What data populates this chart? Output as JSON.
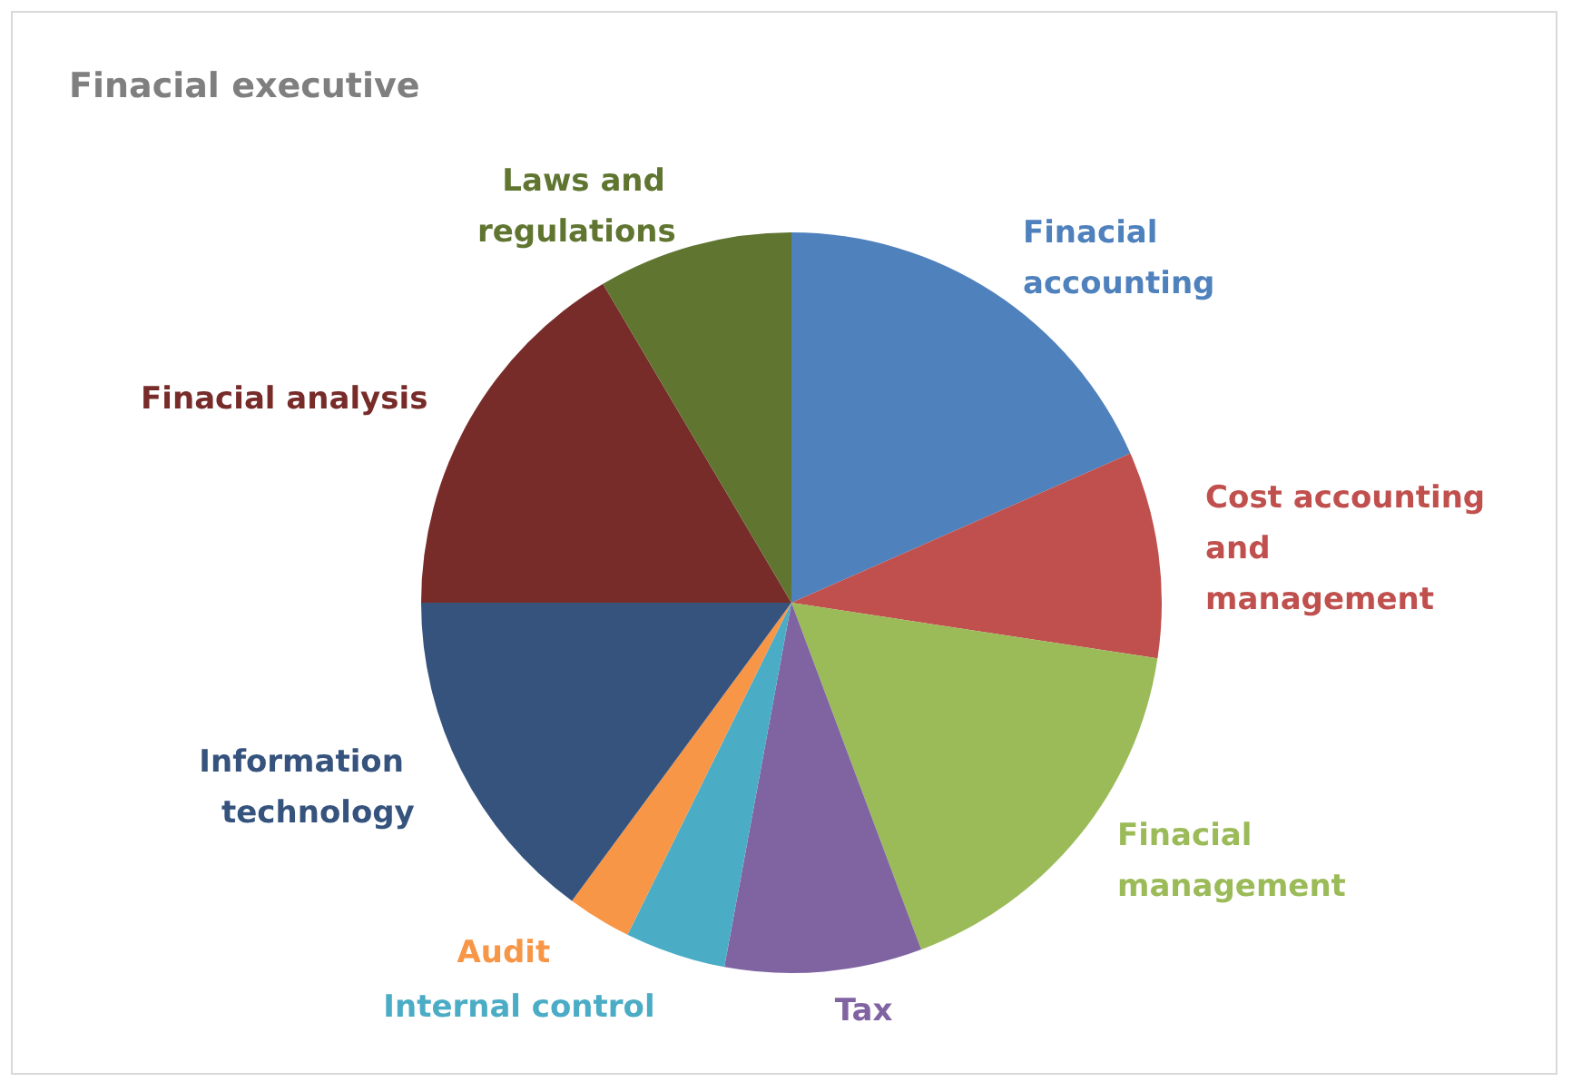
{
  "chart_data": {
    "type": "pie",
    "title": "Finacial executive",
    "categories": [
      "Finacial accounting",
      "Cost accounting and management",
      "Finacial management",
      "Tax",
      "Internal control",
      "Audit",
      "Information technology",
      "Finacial analysis",
      "Laws and regulations"
    ],
    "values": [
      18.4,
      9.0,
      16.9,
      8.6,
      4.4,
      2.8,
      14.9,
      16.5,
      8.5
    ],
    "colors": [
      "#4f81bd",
      "#c0504d",
      "#9bbb59",
      "#8064a2",
      "#4bacc6",
      "#f79646",
      "#35537d",
      "#772c2a",
      "#5f7530"
    ],
    "legend": false
  }
}
